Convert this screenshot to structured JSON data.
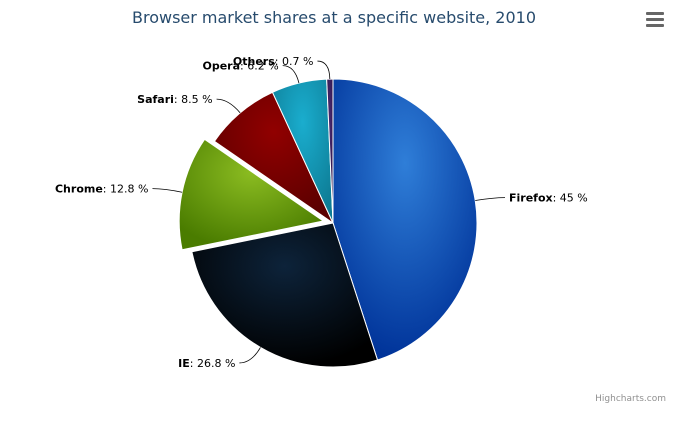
{
  "chart_data": {
    "type": "pie",
    "title": "Browser market shares at a specific website, 2010",
    "unit": "%",
    "slices": [
      {
        "name": "Firefox",
        "value": 45,
        "label": "45 %",
        "color": "#2f7ed8",
        "dark": "#003399",
        "sliced": false
      },
      {
        "name": "IE",
        "value": 26.8,
        "label": "26.8 %",
        "color": "#0d233a",
        "dark": "#000000",
        "sliced": false
      },
      {
        "name": "Chrome",
        "value": 12.8,
        "label": "12.8 %",
        "color": "#8bbc21",
        "dark": "#4a7c00",
        "sliced": true
      },
      {
        "name": "Safari",
        "value": 8.5,
        "label": "8.5 %",
        "color": "#910000",
        "dark": "#5c0000",
        "sliced": false
      },
      {
        "name": "Opera",
        "value": 6.2,
        "label": "6.2 %",
        "color": "#1aadce",
        "dark": "#0e7d96",
        "sliced": false
      },
      {
        "name": "Others",
        "value": 0.7,
        "label": "0.7 %",
        "color": "#492970",
        "dark": "#2a1245",
        "sliced": false
      }
    ]
  },
  "menu": {
    "icon": "hamburger-menu-icon"
  },
  "credits": {
    "text": "Highcharts.com"
  }
}
